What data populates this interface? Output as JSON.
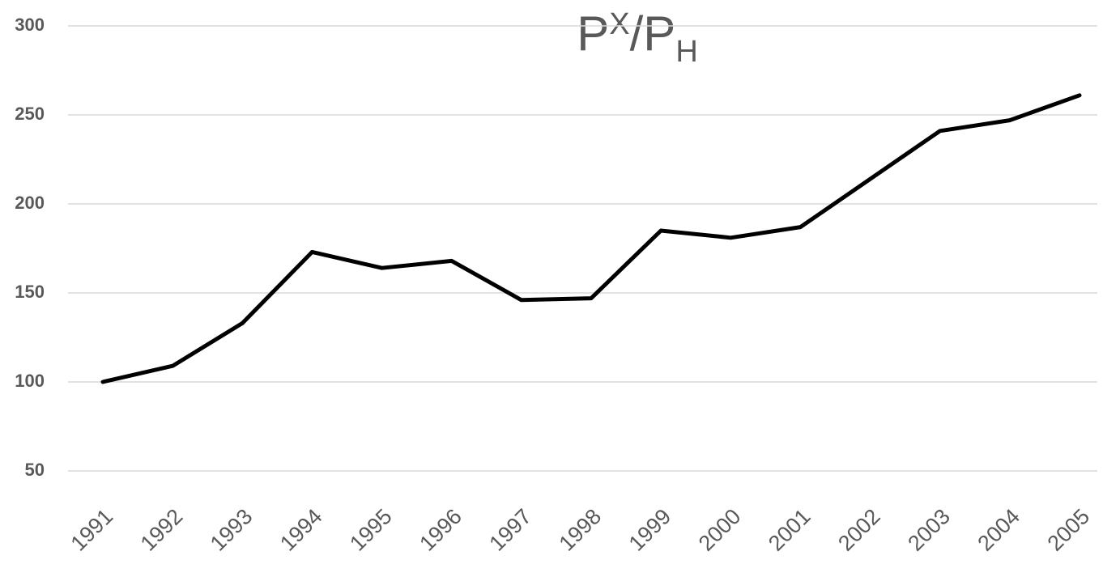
{
  "chart_data": {
    "type": "line",
    "title": {
      "base": "P",
      "sup": "X",
      "slash": "/P",
      "sub": "H"
    },
    "categories": [
      "1991",
      "1992",
      "1993",
      "1994",
      "1995",
      "1996",
      "1997",
      "1998",
      "1999",
      "2000",
      "2001",
      "2002",
      "2003",
      "2004",
      "2005"
    ],
    "series": [
      {
        "color": "#000000",
        "values": [
          100,
          109,
          133,
          173,
          164,
          168,
          146,
          147,
          185,
          181,
          187,
          214,
          241,
          247,
          261
        ]
      }
    ],
    "ylim": [
      50,
      300
    ],
    "yticks": [
      50,
      100,
      150,
      200,
      250,
      300
    ],
    "grid": true
  }
}
